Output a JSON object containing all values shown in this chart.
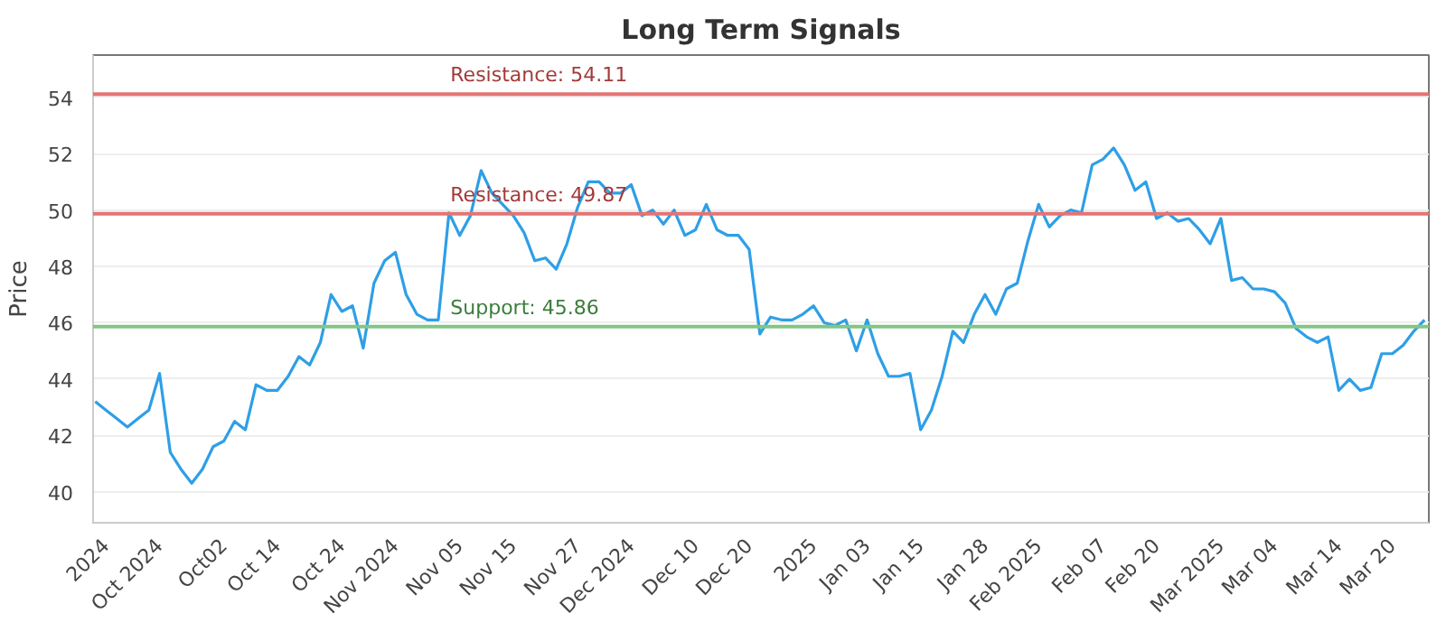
{
  "chart_data": {
    "type": "line",
    "title": "Long Term Signals",
    "ylabel": "Price",
    "categories": [
      null,
      "2024",
      null,
      null,
      null,
      null,
      "Oct 2024",
      null,
      null,
      null,
      null,
      null,
      "Oct02",
      null,
      null,
      null,
      null,
      "Oct 14",
      null,
      null,
      null,
      null,
      null,
      "Oct 24",
      null,
      null,
      null,
      null,
      "Nov 2024",
      null,
      null,
      null,
      null,
      null,
      "Nov 05",
      null,
      null,
      null,
      null,
      "Nov 15",
      null,
      null,
      null,
      null,
      null,
      "Nov 27",
      null,
      null,
      null,
      null,
      "Dec 2024",
      null,
      null,
      null,
      null,
      null,
      "Dec 10",
      null,
      null,
      null,
      null,
      "Dec 20",
      null,
      null,
      null,
      null,
      null,
      "2025",
      null,
      null,
      null,
      null,
      "Jan 03",
      null,
      null,
      null,
      null,
      "Jan 15",
      null,
      null,
      null,
      null,
      null,
      "Jan 28",
      null,
      null,
      null,
      null,
      "Feb 2025",
      null,
      null,
      null,
      null,
      null,
      "Feb 07",
      null,
      null,
      null,
      null,
      "Feb 20",
      null,
      null,
      null,
      null,
      null,
      "Mar 2025",
      null,
      null,
      null,
      null,
      "Mar 04",
      null,
      null,
      null,
      null,
      null,
      "Mar 14",
      null,
      null,
      null,
      null,
      "Mar 20",
      null,
      null,
      null
    ],
    "series": [
      {
        "color": "#2e9fe6",
        "values": [
          43.2,
          42.9,
          42.6,
          42.3,
          42.6,
          42.9,
          44.2,
          41.4,
          40.8,
          40.3,
          40.8,
          41.6,
          41.8,
          42.5,
          42.2,
          43.8,
          43.6,
          43.6,
          44.1,
          44.8,
          44.5,
          45.3,
          47.0,
          46.4,
          46.6,
          45.1,
          47.4,
          48.2,
          48.5,
          47.0,
          46.3,
          46.1,
          46.1,
          49.9,
          49.1,
          49.8,
          51.4,
          50.6,
          50.2,
          49.8,
          49.2,
          48.2,
          48.3,
          47.9,
          48.8,
          50.1,
          51.0,
          51.0,
          50.6,
          50.6,
          50.9,
          49.8,
          50.0,
          49.5,
          50.0,
          49.1,
          49.3,
          50.2,
          49.3,
          49.1,
          49.1,
          48.6,
          45.6,
          46.2,
          46.1,
          46.1,
          46.3,
          46.6,
          46.0,
          45.9,
          46.1,
          45.0,
          46.1,
          44.9,
          44.1,
          44.1,
          44.2,
          42.2,
          42.9,
          44.1,
          45.7,
          45.3,
          46.3,
          47.0,
          46.3,
          47.2,
          47.4,
          48.9,
          50.2,
          49.4,
          49.8,
          50.0,
          49.9,
          51.6,
          51.8,
          52.2,
          51.6,
          50.7,
          51.0,
          49.7,
          49.9,
          49.6,
          49.7,
          49.3,
          48.8,
          49.7,
          47.5,
          47.6,
          47.2,
          47.2,
          47.1,
          46.7,
          45.8,
          45.5,
          45.3,
          45.5,
          43.6,
          44.0,
          43.6,
          43.7,
          44.9,
          44.9,
          45.2,
          45.7,
          46.1
        ]
      }
    ],
    "ylim": [
      38.9,
      55.5
    ],
    "yticks": [
      40,
      42,
      44,
      46,
      48,
      50,
      52,
      54
    ],
    "grid": "y",
    "ref_lines": [
      {
        "axis": "y",
        "value": 54.11,
        "label": "Resistance: 54.11",
        "color": "#e57373"
      },
      {
        "axis": "y",
        "value": 49.87,
        "label": "Resistance: 49.87",
        "color": "#e57373"
      },
      {
        "axis": "y",
        "value": 45.86,
        "label": "Support: 45.86",
        "color": "#81c784"
      }
    ]
  }
}
